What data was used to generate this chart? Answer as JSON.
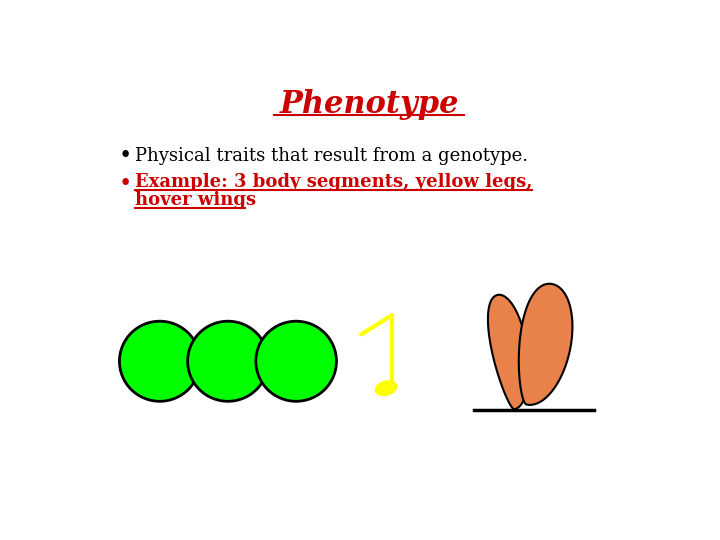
{
  "title": "Phenotype",
  "title_color": "#cc0000",
  "title_fontsize": 22,
  "bullet1": "Physical traits that result from a genotype.",
  "bullet2_line1": "Example: 3 body segments, yellow legs,",
  "bullet2_line2": "hover wings",
  "bullet_color_1": "#000000",
  "bullet_color_2": "#cc0000",
  "bullet_fontsize": 13,
  "bg_color": "#ffffff",
  "circle_color": "#00ff00",
  "circle_edge": "#000000",
  "wing_color": "#e8824a",
  "wing_edge": "#000000",
  "note_color": "#ffff00",
  "ground_color": "#000000"
}
